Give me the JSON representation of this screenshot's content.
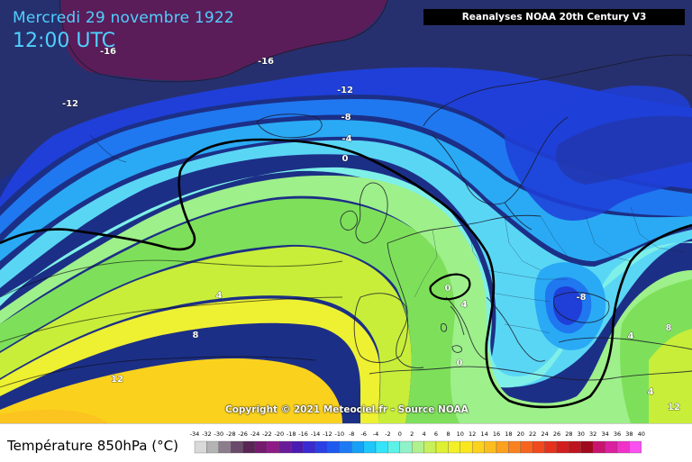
{
  "header": {
    "date": "Mercredi 29 novembre 1922",
    "time": "12:00 UTC",
    "source": "Reanalyses NOAA 20th Century V3"
  },
  "copyright": "Copyright © 2021 Meteociel.fr - Source NOAA",
  "legend": {
    "title": "Température 850hPa (°C)",
    "ticks": [
      "-34",
      "-32",
      "-30",
      "-28",
      "-26",
      "-24",
      "-22",
      "-20",
      "-18",
      "-16",
      "-14",
      "-12",
      "-10",
      "-8",
      "-6",
      "-4",
      "-2",
      "0",
      "2",
      "4",
      "6",
      "8",
      "10",
      "12",
      "14",
      "16",
      "18",
      "20",
      "22",
      "24",
      "26",
      "28",
      "30",
      "32",
      "34",
      "36",
      "38",
      "40"
    ],
    "colors": [
      "#d9d9d9",
      "#b4b4b4",
      "#8c7d8c",
      "#6b4b6b",
      "#5a2456",
      "#751b6e",
      "#8f1b86",
      "#6a1b9a",
      "#4a1bb0",
      "#3a2ad0",
      "#2a3fe4",
      "#1f5af0",
      "#1d7af2",
      "#18a0f6",
      "#1ec6fa",
      "#34e4fa",
      "#5cf2e8",
      "#8ff2c8",
      "#b0f08f",
      "#c8f05a",
      "#def032",
      "#f2f028",
      "#fae61e",
      "#fcd21e",
      "#fcbe1e",
      "#fca01e",
      "#fa821e",
      "#f6641e",
      "#f04a1e",
      "#e4321e",
      "#d21e1e",
      "#be141e",
      "#a00a1e",
      "#c8146e",
      "#dc1ea0",
      "#f032c8",
      "#fa50f0"
    ]
  },
  "map": {
    "isotherm_labels": [
      {
        "text": "-16"
      },
      {
        "text": "-16"
      },
      {
        "text": "-12"
      },
      {
        "text": "-12"
      },
      {
        "text": "-8"
      },
      {
        "text": "-4"
      },
      {
        "text": "0"
      },
      {
        "text": "4"
      },
      {
        "text": "8"
      },
      {
        "text": "12"
      },
      {
        "text": "0"
      },
      {
        "text": "4"
      },
      {
        "text": "0"
      },
      {
        "text": "-8"
      },
      {
        "text": "4"
      },
      {
        "text": "8"
      },
      {
        "text": "4"
      },
      {
        "text": "12"
      }
    ],
    "colors": {
      "deep_purple": "#5a1d5a",
      "navy": "#202a6e",
      "blue": "#1f3fd8",
      "mid_blue": "#1f78f0",
      "light_blue": "#2aaaf5",
      "cyan": "#5ad6f5",
      "aqua": "#7ef0e8",
      "green_light": "#9ef08a",
      "green": "#7ee05a",
      "yellow_green": "#c8ee3a",
      "yellow": "#eef032",
      "gold": "#fad21e",
      "orange_yellow": "#fcc41e"
    }
  }
}
